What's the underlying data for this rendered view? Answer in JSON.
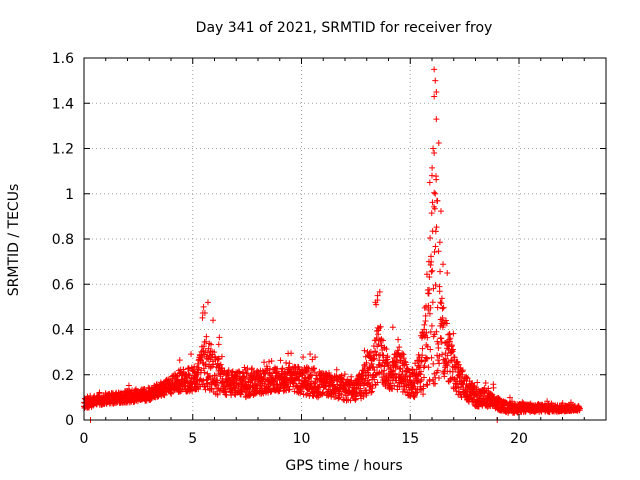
{
  "chart_data": {
    "type": "scatter",
    "title": "Day 341 of 2021, SRMTID for receiver froy",
    "xlabel": "GPS time / hours",
    "ylabel": "SRMTID / TECUs",
    "xlim": [
      0,
      24
    ],
    "ylim": [
      0,
      1.6
    ],
    "grid": true,
    "legend": "none",
    "marker": "+",
    "color": "#ff0000",
    "x_ticks": [
      "0",
      "5",
      "10",
      "15",
      "20"
    ],
    "y_ticks": [
      "0",
      "0.2",
      "0.4",
      "0.6",
      "0.8",
      "1",
      "1.2",
      "1.4",
      "1.6"
    ],
    "x_tick_values": [
      0,
      5,
      10,
      15,
      20
    ],
    "y_tick_values": [
      0,
      0.2,
      0.4,
      0.6,
      0.8,
      1.0,
      1.2,
      1.4,
      1.6
    ],
    "series_profile": {
      "description": "approximate envelope of the point cloud (hour, typical value, upper spread)",
      "anchors": [
        [
          0.0,
          0.07,
          0.04
        ],
        [
          1.0,
          0.09,
          0.04
        ],
        [
          2.0,
          0.1,
          0.05
        ],
        [
          3.0,
          0.11,
          0.05
        ],
        [
          4.0,
          0.15,
          0.07
        ],
        [
          4.5,
          0.17,
          0.1
        ],
        [
          5.2,
          0.18,
          0.1
        ],
        [
          5.6,
          0.25,
          0.25
        ],
        [
          6.0,
          0.2,
          0.18
        ],
        [
          6.5,
          0.16,
          0.1
        ],
        [
          7.5,
          0.15,
          0.1
        ],
        [
          8.5,
          0.17,
          0.1
        ],
        [
          9.5,
          0.18,
          0.1
        ],
        [
          10.5,
          0.16,
          0.12
        ],
        [
          11.5,
          0.14,
          0.1
        ],
        [
          12.5,
          0.12,
          0.08
        ],
        [
          13.3,
          0.22,
          0.2
        ],
        [
          13.6,
          0.3,
          0.25
        ],
        [
          14.0,
          0.18,
          0.1
        ],
        [
          14.5,
          0.22,
          0.18
        ],
        [
          15.0,
          0.15,
          0.1
        ],
        [
          15.5,
          0.2,
          0.2
        ],
        [
          15.9,
          0.45,
          0.6
        ],
        [
          16.2,
          0.6,
          0.95
        ],
        [
          16.5,
          0.35,
          0.3
        ],
        [
          17.0,
          0.2,
          0.15
        ],
        [
          17.5,
          0.14,
          0.1
        ],
        [
          18.0,
          0.1,
          0.08
        ],
        [
          18.5,
          0.09,
          0.07
        ],
        [
          19.0,
          0.07,
          0.05
        ],
        [
          19.5,
          0.05,
          0.04
        ],
        [
          20.5,
          0.05,
          0.03
        ],
        [
          21.5,
          0.05,
          0.03
        ],
        [
          22.5,
          0.05,
          0.02
        ],
        [
          22.8,
          0.05,
          0.02
        ]
      ],
      "outliers": [
        [
          16.1,
          1.55
        ],
        [
          16.15,
          1.5
        ],
        [
          16.2,
          1.45
        ],
        [
          16.1,
          1.43
        ],
        [
          16.2,
          1.33
        ],
        [
          16.05,
          1.2
        ],
        [
          16.1,
          1.18
        ],
        [
          16.0,
          1.08
        ],
        [
          15.9,
          1.05
        ],
        [
          16.15,
          1.0
        ],
        [
          5.7,
          0.52
        ],
        [
          5.5,
          0.5
        ],
        [
          13.5,
          0.55
        ],
        [
          13.4,
          0.52
        ],
        [
          14.2,
          0.41
        ],
        [
          16.7,
          0.65
        ]
      ]
    }
  }
}
